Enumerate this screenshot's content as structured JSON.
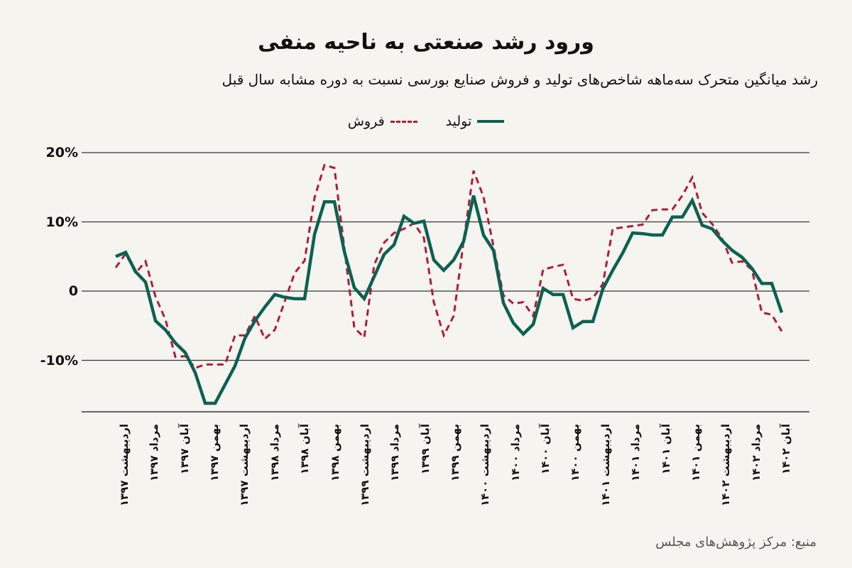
{
  "colors": {
    "background": "#f5f4ef",
    "production": "#0c6152",
    "sales": "#b01c3a",
    "grid": "#333333"
  },
  "source": "منبع: مرکز پژوهش‌های مجلس",
  "chart_data": {
    "type": "line",
    "title": "ورود رشد صنعتی به ناحیه منفی",
    "subtitle": "رشد میانگین متحرک سه‌ماهه شاخص‌های تولید و فروش صنایع بورسی نسبت به دوره مشابه سال قبل",
    "legend_position": "top-center",
    "ylim": [
      -17,
      20
    ],
    "yticks": [
      {
        "value": 20,
        "label": "20%"
      },
      {
        "value": 10,
        "label": "10%"
      },
      {
        "value": 0,
        "label": "0"
      },
      {
        "value": -10,
        "label": "-10%"
      }
    ],
    "grid": true,
    "xtick_labels": [
      "اردیبهشت ۱۳۹۷",
      "مرداد ۱۳۹۷",
      "آبان ۱۳۹۷",
      "بهمن ۱۳۹۷",
      "اردیبهشت ۱۳۹۷",
      "مرداد ۱۳۹۸",
      "آبان ۱۳۹۸",
      "بهمن ۱۳۹۸",
      "اردیبهشت ۱۳۹۹",
      "مرداد ۱۳۹۹",
      "آبان ۱۳۹۹",
      "بهمن ۱۳۹۹",
      "اردیبهشت ۱۴۰۰",
      "مرداد ۱۴۰۰",
      "آبان ۱۴۰۰",
      "بهمن ۱۴۰۰",
      "اردیبهشت ۱۴۰۱",
      "مرداد ۱۴۰۱",
      "آبان ۱۴۰۱",
      "بهمن ۱۴۰۱",
      "اردیبهشت ۱۴۰۲",
      "مرداد ۱۴۰۲",
      "آبان ۱۴۰۲"
    ],
    "series": [
      {
        "name": "تولید",
        "style": "solid",
        "values": [
          5.0,
          5.6,
          2.8,
          1.3,
          -4.3,
          -5.6,
          -7.5,
          -8.9,
          -11.8,
          -16.2,
          -16.2,
          -13.5,
          -10.8,
          -6.8,
          -4.3,
          -2.3,
          -0.5,
          -0.9,
          -1.1,
          -1.1,
          8.2,
          12.9,
          12.9,
          5.7,
          0.5,
          -1.1,
          2.1,
          5.3,
          6.7,
          10.8,
          9.8,
          10.1,
          4.5,
          3.0,
          4.5,
          7.2,
          13.8,
          8.1,
          5.9,
          -1.7,
          -4.6,
          -6.2,
          -4.8,
          0.4,
          -0.5,
          -0.5,
          -5.3,
          -4.4,
          -4.4,
          0.3,
          3.0,
          5.5,
          8.4,
          8.3,
          8.1,
          8.1,
          10.7,
          10.7,
          13.1,
          9.5,
          9.0,
          7.3,
          5.9,
          4.9,
          3.3,
          1.1,
          1.1,
          -3.1
        ]
      },
      {
        "name": "فروش",
        "style": "dashed",
        "values": [
          3.4,
          5.4,
          2.6,
          4.3,
          -0.8,
          -4.1,
          -9.5,
          -9.4,
          -11.1,
          -10.6,
          -10.6,
          -10.6,
          -6.4,
          -6.4,
          -3.6,
          -6.9,
          -5.6,
          -1.5,
          2.6,
          4.4,
          13.5,
          18.2,
          17.8,
          6.2,
          -5.3,
          -6.7,
          3.8,
          7.0,
          8.4,
          9.0,
          9.8,
          7.7,
          -1.6,
          -6.4,
          -3.6,
          7.2,
          17.4,
          13.6,
          6.5,
          -0.6,
          -1.8,
          -1.6,
          -3.6,
          3.1,
          3.5,
          3.8,
          -1.1,
          -1.4,
          -1.0,
          1.0,
          9.0,
          9.2,
          9.4,
          9.6,
          11.7,
          11.8,
          11.8,
          13.8,
          16.4,
          11.3,
          9.7,
          7.6,
          4.1,
          4.3,
          3.1,
          -3.1,
          -3.4,
          -5.8
        ]
      }
    ]
  }
}
